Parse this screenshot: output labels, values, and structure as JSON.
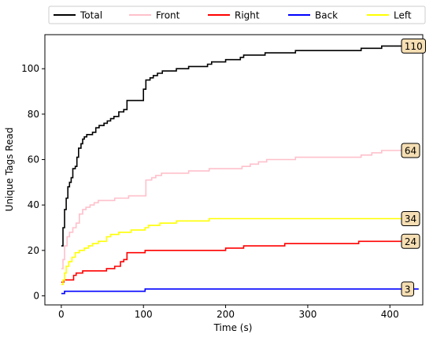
{
  "chart_data": {
    "type": "line",
    "xlabel": "Time (s)",
    "ylabel": "Unique Tags Read",
    "xlim": [
      -20,
      440
    ],
    "ylim": [
      -4,
      115
    ],
    "xticks": [
      0,
      100,
      200,
      300,
      400
    ],
    "yticks": [
      0,
      20,
      40,
      60,
      80,
      100
    ],
    "grid": false,
    "legend_position": "top",
    "series": [
      {
        "name": "Total",
        "color": "#000000",
        "end_label": "110",
        "points": [
          [
            0,
            22
          ],
          [
            2,
            30
          ],
          [
            4,
            38
          ],
          [
            6,
            43
          ],
          [
            8,
            48
          ],
          [
            10,
            50
          ],
          [
            12,
            52
          ],
          [
            14,
            56
          ],
          [
            17,
            57
          ],
          [
            19,
            61
          ],
          [
            21,
            65
          ],
          [
            24,
            67
          ],
          [
            26,
            69
          ],
          [
            28,
            70
          ],
          [
            31,
            71
          ],
          [
            35,
            71
          ],
          [
            38,
            72
          ],
          [
            42,
            74
          ],
          [
            46,
            75
          ],
          [
            52,
            76
          ],
          [
            56,
            77
          ],
          [
            60,
            78
          ],
          [
            64,
            79
          ],
          [
            70,
            81
          ],
          [
            76,
            82
          ],
          [
            80,
            86
          ],
          [
            98,
            86
          ],
          [
            100,
            91
          ],
          [
            103,
            95
          ],
          [
            108,
            96
          ],
          [
            112,
            97
          ],
          [
            117,
            98
          ],
          [
            123,
            99
          ],
          [
            140,
            100
          ],
          [
            155,
            101
          ],
          [
            178,
            102
          ],
          [
            183,
            103
          ],
          [
            200,
            104
          ],
          [
            218,
            105
          ],
          [
            222,
            106
          ],
          [
            248,
            107
          ],
          [
            285,
            108
          ],
          [
            365,
            109
          ],
          [
            390,
            110
          ],
          [
            435,
            110
          ]
        ]
      },
      {
        "name": "Front",
        "color": "#ffc0cb",
        "end_label": "64",
        "points": [
          [
            0,
            12
          ],
          [
            2,
            16
          ],
          [
            4,
            22
          ],
          [
            7,
            26
          ],
          [
            10,
            28
          ],
          [
            14,
            30
          ],
          [
            18,
            32
          ],
          [
            22,
            36
          ],
          [
            26,
            38
          ],
          [
            30,
            39
          ],
          [
            35,
            40
          ],
          [
            40,
            41
          ],
          [
            45,
            42
          ],
          [
            60,
            42
          ],
          [
            65,
            43
          ],
          [
            80,
            43
          ],
          [
            82,
            44
          ],
          [
            100,
            44
          ],
          [
            103,
            51
          ],
          [
            110,
            52
          ],
          [
            115,
            53
          ],
          [
            122,
            54
          ],
          [
            155,
            55
          ],
          [
            180,
            56
          ],
          [
            220,
            57
          ],
          [
            230,
            58
          ],
          [
            240,
            59
          ],
          [
            250,
            60
          ],
          [
            285,
            61
          ],
          [
            365,
            62
          ],
          [
            378,
            63
          ],
          [
            390,
            64
          ],
          [
            435,
            64
          ]
        ]
      },
      {
        "name": "Right",
        "color": "#ff0000",
        "end_label": "24",
        "points": [
          [
            0,
            6
          ],
          [
            3,
            7
          ],
          [
            15,
            9
          ],
          [
            18,
            10
          ],
          [
            22,
            10
          ],
          [
            26,
            11
          ],
          [
            52,
            11
          ],
          [
            55,
            12
          ],
          [
            62,
            12
          ],
          [
            65,
            13
          ],
          [
            72,
            15
          ],
          [
            76,
            16
          ],
          [
            80,
            19
          ],
          [
            100,
            19
          ],
          [
            102,
            20
          ],
          [
            198,
            20
          ],
          [
            200,
            21
          ],
          [
            222,
            22
          ],
          [
            272,
            23
          ],
          [
            360,
            23
          ],
          [
            362,
            24
          ],
          [
            435,
            24
          ]
        ]
      },
      {
        "name": "Back",
        "color": "#0000ff",
        "end_label": "3",
        "points": [
          [
            0,
            1
          ],
          [
            4,
            2
          ],
          [
            100,
            2
          ],
          [
            102,
            3
          ],
          [
            435,
            3
          ]
        ]
      },
      {
        "name": "Left",
        "color": "#ffff00",
        "end_label": "34",
        "points": [
          [
            0,
            5
          ],
          [
            2,
            7
          ],
          [
            4,
            10
          ],
          [
            6,
            13
          ],
          [
            9,
            15
          ],
          [
            13,
            17
          ],
          [
            17,
            19
          ],
          [
            22,
            20
          ],
          [
            28,
            21
          ],
          [
            33,
            22
          ],
          [
            38,
            23
          ],
          [
            45,
            24
          ],
          [
            55,
            26
          ],
          [
            60,
            27
          ],
          [
            70,
            28
          ],
          [
            85,
            29
          ],
          [
            100,
            29
          ],
          [
            102,
            30
          ],
          [
            106,
            31
          ],
          [
            120,
            32
          ],
          [
            140,
            33
          ],
          [
            180,
            34
          ],
          [
            435,
            34
          ]
        ]
      }
    ]
  }
}
